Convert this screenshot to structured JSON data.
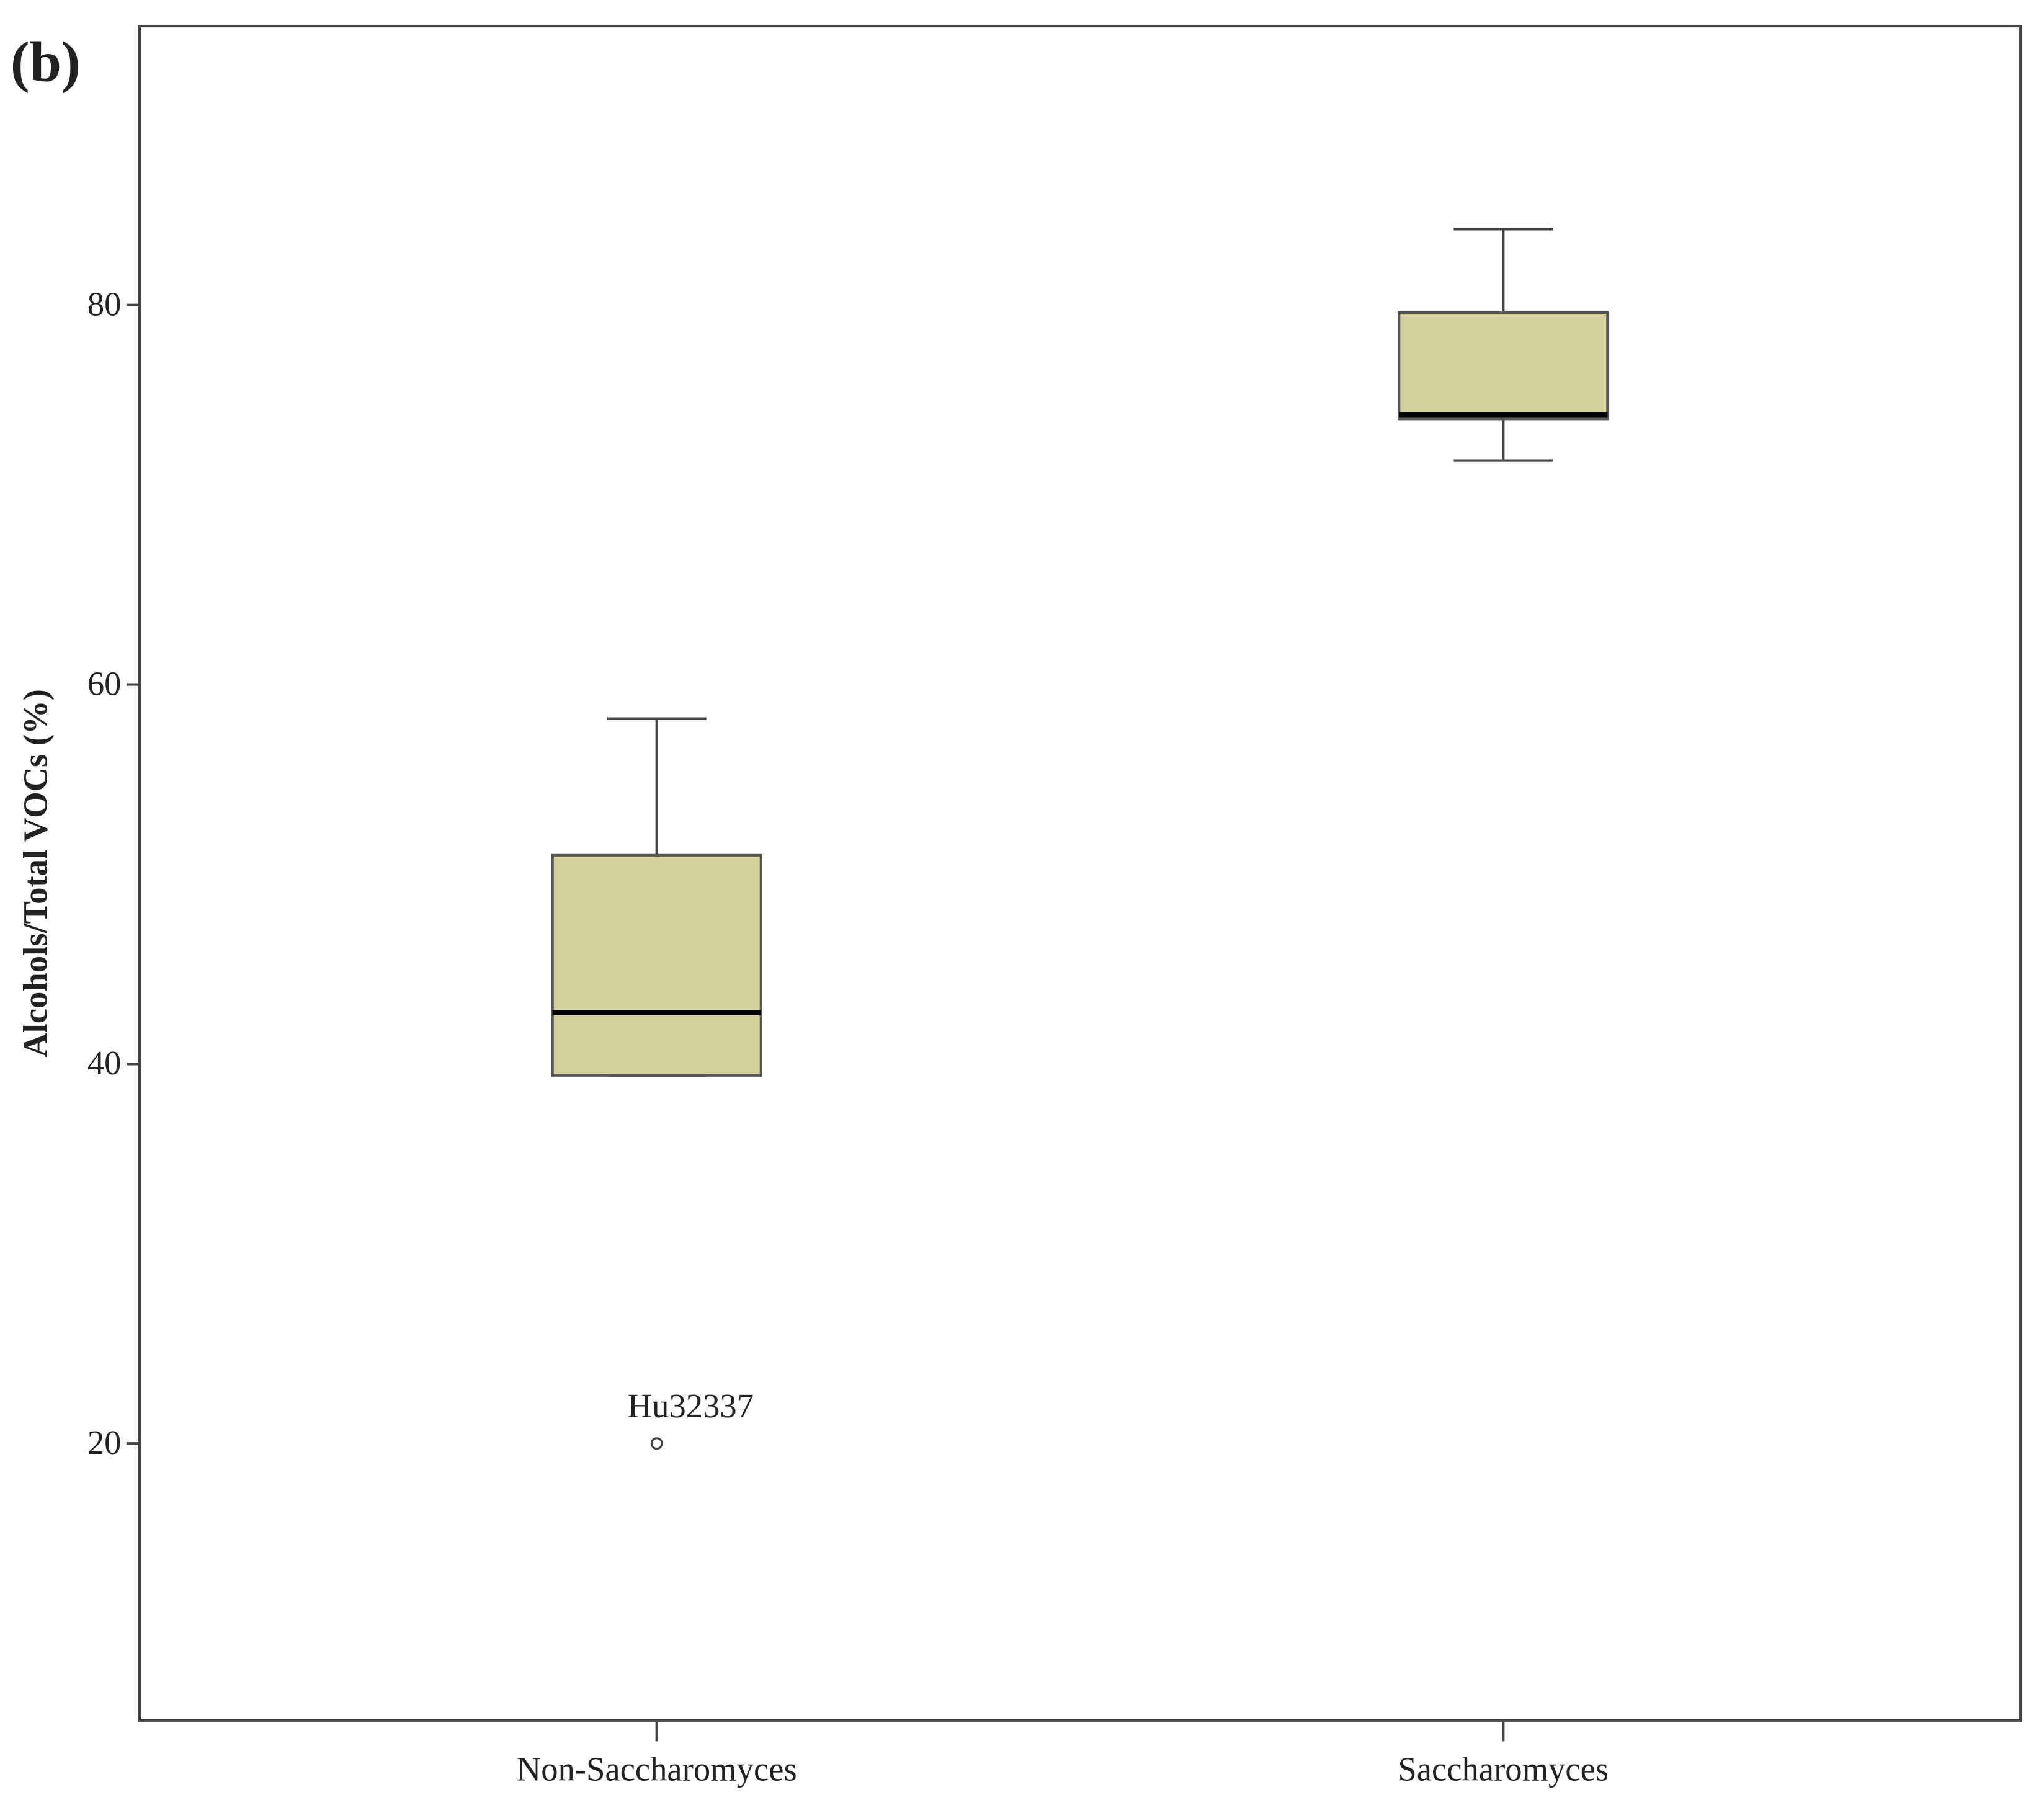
{
  "panel_label": "(b)",
  "chart_data": {
    "type": "box",
    "y_label": "Alcohols/Total VOCs (%)",
    "categories": [
      "Non-Saccharomyces",
      "Saccharomyces"
    ],
    "boxes": [
      {
        "min": 39.4,
        "q1": 39.4,
        "median": 42.7,
        "q3": 51.0,
        "max": 58.2
      },
      {
        "min": 71.8,
        "q1": 74.0,
        "median": 74.2,
        "q3": 79.6,
        "max": 84.0
      }
    ],
    "outliers": [
      [
        20.0
      ],
      []
    ],
    "outlier_labels": [
      [
        "Hu32337"
      ],
      []
    ],
    "color": "#d4d09c",
    "ylim": [
      5.4,
      94.7
    ],
    "yticks": [
      20,
      40,
      60,
      80
    ]
  }
}
